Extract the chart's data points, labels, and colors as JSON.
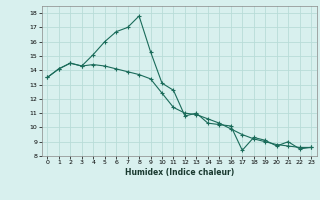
{
  "title": "",
  "xlabel": "Humidex (Indice chaleur)",
  "bg_color": "#d8f0ee",
  "grid_color": "#b8dcd8",
  "line_color": "#1a6b5a",
  "xlim": [
    -0.5,
    23.5
  ],
  "ylim": [
    8,
    18.5
  ],
  "yticks": [
    8,
    9,
    10,
    11,
    12,
    13,
    14,
    15,
    16,
    17,
    18
  ],
  "xticks": [
    0,
    1,
    2,
    3,
    4,
    5,
    6,
    7,
    8,
    9,
    10,
    11,
    12,
    13,
    14,
    15,
    16,
    17,
    18,
    19,
    20,
    21,
    22,
    23
  ],
  "series1_x": [
    0,
    1,
    2,
    3,
    4,
    5,
    6,
    7,
    8,
    9,
    10,
    11,
    12,
    13,
    14,
    15,
    16,
    17,
    18,
    19,
    20,
    21,
    22,
    23
  ],
  "series1_y": [
    13.5,
    14.1,
    14.5,
    14.3,
    15.1,
    16.0,
    16.7,
    17.0,
    17.8,
    15.3,
    13.1,
    12.6,
    10.8,
    11.0,
    10.3,
    10.2,
    10.1,
    8.4,
    9.3,
    9.1,
    8.7,
    9.0,
    8.5,
    8.6
  ],
  "series2_x": [
    0,
    1,
    2,
    3,
    4,
    5,
    6,
    7,
    8,
    9,
    10,
    11,
    12,
    13,
    14,
    15,
    16,
    17,
    18,
    19,
    20,
    21,
    22,
    23
  ],
  "series2_y": [
    13.5,
    14.1,
    14.5,
    14.3,
    14.4,
    14.3,
    14.1,
    13.9,
    13.7,
    13.4,
    12.4,
    11.4,
    11.0,
    10.9,
    10.6,
    10.3,
    9.9,
    9.5,
    9.2,
    9.0,
    8.8,
    8.7,
    8.6,
    8.6
  ]
}
